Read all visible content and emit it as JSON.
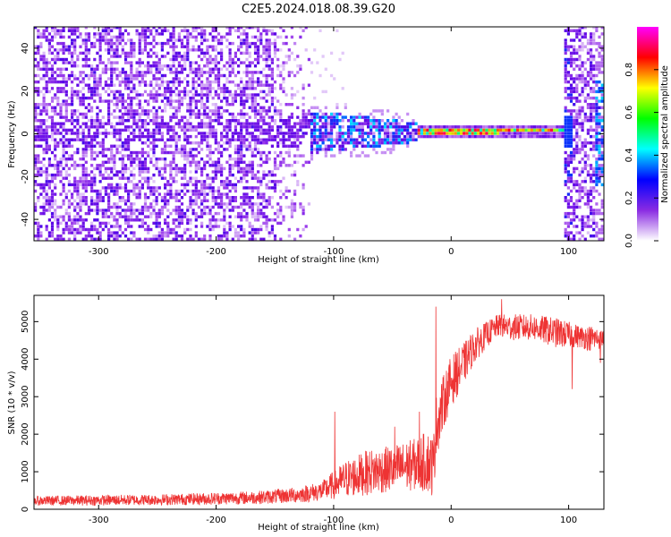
{
  "title": "C2E5.2024.018.08.39.G20",
  "chart_data": [
    {
      "type": "heatmap",
      "xlabel": "Height of straight line (km)",
      "ylabel": "Frequency (Hz)",
      "xlim": [
        -355,
        130
      ],
      "ylim": [
        -50,
        50
      ],
      "x_ticks": [
        "-300",
        "-200",
        "-100",
        "0",
        "100"
      ],
      "x_tick_values": [
        -300,
        -200,
        -100,
        0,
        100
      ],
      "y_ticks": [
        "40",
        "20",
        "0",
        "-20",
        "-40"
      ],
      "y_tick_values": [
        40,
        20,
        0,
        -20,
        -40
      ],
      "colorbar": {
        "label": "Normalized spectral amplitude",
        "range": [
          0,
          1
        ],
        "ticks": [
          "0.0",
          "0.2",
          "0.4",
          "0.6",
          "0.8"
        ],
        "tick_values": [
          0.0,
          0.2,
          0.4,
          0.6,
          0.8
        ],
        "colormap": [
          "#ffffff",
          "#8a2be2",
          "#0000ff",
          "#00ffff",
          "#00ff00",
          "#ffff00",
          "#ff0000",
          "#ff00ff"
        ]
      }
    },
    {
      "type": "line",
      "xlabel": "Height of straight line (km)",
      "ylabel": "SNR (10 * v/v)",
      "xlim": [
        -355,
        130
      ],
      "ylim": [
        0,
        5700
      ],
      "x_ticks": [
        "-300",
        "-200",
        "-100",
        "0",
        "100"
      ],
      "x_tick_values": [
        -300,
        -200,
        -100,
        0,
        100
      ],
      "y_ticks": [
        "0",
        "1000",
        "2000",
        "3000",
        "4000",
        "5000"
      ],
      "y_tick_values": [
        0,
        1000,
        2000,
        3000,
        4000,
        5000
      ],
      "line_color": "#ee3333",
      "envelope": {
        "x": [
          -355,
          -300,
          -250,
          -200,
          -160,
          -130,
          -110,
          -90,
          -70,
          -50,
          -30,
          -20,
          -15,
          -13,
          -10,
          -5,
          0,
          10,
          20,
          30,
          40,
          50,
          70,
          90,
          100,
          110,
          120,
          130
        ],
        "low": [
          100,
          100,
          110,
          120,
          140,
          170,
          220,
          300,
          380,
          450,
          500,
          450,
          300,
          1300,
          1700,
          2300,
          2700,
          3300,
          3900,
          4300,
          4600,
          4500,
          4500,
          4300,
          4300,
          4300,
          4200,
          4300
        ],
        "high": [
          350,
          380,
          400,
          450,
          500,
          600,
          750,
          1300,
          1600,
          1700,
          1900,
          2100,
          2000,
          3000,
          3300,
          3700,
          4100,
          4400,
          4800,
          5000,
          5200,
          5200,
          5200,
          5100,
          5000,
          4900,
          4900,
          4800
        ]
      },
      "spikes": [
        {
          "x": -99,
          "y": 2600
        },
        {
          "x": -48,
          "y": 2200
        },
        {
          "x": -27,
          "y": 2600
        },
        {
          "x": -13,
          "y": 5400
        },
        {
          "x": 43,
          "y": 5600
        },
        {
          "x": 103,
          "y": 3200
        },
        {
          "x": 127,
          "y": 3900
        }
      ]
    }
  ]
}
